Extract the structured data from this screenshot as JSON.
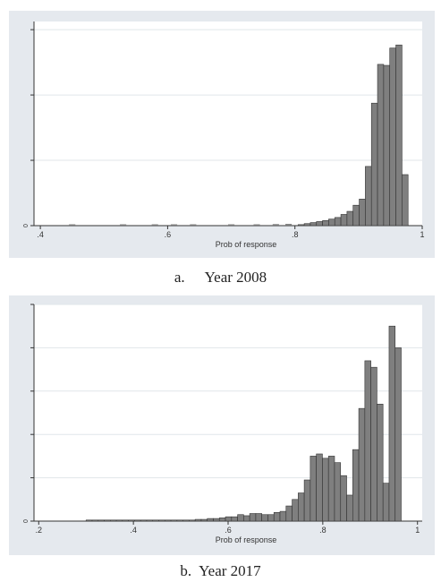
{
  "chart_data": [
    {
      "type": "bar",
      "caption_letter": "a.",
      "caption_text": "Year 2008",
      "xlabel": "Prob of response",
      "xlim": [
        0.39,
        1.0
      ],
      "xticks": [
        ".4",
        ".6",
        ".8",
        "1"
      ],
      "xtick_values": [
        0.4,
        0.6,
        0.8,
        1.0
      ],
      "yticks": [
        "0"
      ],
      "ytick_values": [
        0
      ],
      "ylim": [
        0,
        1.0
      ],
      "gridlines": [
        0,
        0.32,
        0.64,
        0.96
      ],
      "bin_width": 0.0096,
      "bins": [
        {
          "x": 0.805,
          "y": 0.005
        },
        {
          "x": 0.8146,
          "y": 0.01
        },
        {
          "x": 0.8242,
          "y": 0.015
        },
        {
          "x": 0.8338,
          "y": 0.02
        },
        {
          "x": 0.8434,
          "y": 0.025
        },
        {
          "x": 0.853,
          "y": 0.032
        },
        {
          "x": 0.8626,
          "y": 0.04
        },
        {
          "x": 0.8722,
          "y": 0.055
        },
        {
          "x": 0.8818,
          "y": 0.07
        },
        {
          "x": 0.8914,
          "y": 0.1
        },
        {
          "x": 0.901,
          "y": 0.13
        },
        {
          "x": 0.9106,
          "y": 0.29
        },
        {
          "x": 0.9202,
          "y": 0.6
        },
        {
          "x": 0.9298,
          "y": 0.79
        },
        {
          "x": 0.9394,
          "y": 0.785
        },
        {
          "x": 0.949,
          "y": 0.87
        },
        {
          "x": 0.9586,
          "y": 0.885
        },
        {
          "x": 0.9682,
          "y": 0.25
        }
      ],
      "tail_bins": [
        {
          "x": 0.45,
          "y": 0.002
        },
        {
          "x": 0.53,
          "y": 0.002
        },
        {
          "x": 0.58,
          "y": 0.002
        },
        {
          "x": 0.61,
          "y": 0.002
        },
        {
          "x": 0.64,
          "y": 0.002
        },
        {
          "x": 0.7,
          "y": 0.002
        },
        {
          "x": 0.74,
          "y": 0.002
        },
        {
          "x": 0.77,
          "y": 0.003
        },
        {
          "x": 0.79,
          "y": 0.004
        }
      ]
    },
    {
      "type": "bar",
      "caption_letter": "b.",
      "caption_text": "Year 2017",
      "xlabel": "Prob of response",
      "xlim": [
        0.19,
        1.01
      ],
      "xticks": [
        ".2",
        ".4",
        ".6",
        ".8",
        "1"
      ],
      "xtick_values": [
        0.2,
        0.4,
        0.6,
        0.8,
        1.0
      ],
      "yticks": [
        "0"
      ],
      "ytick_values": [
        0
      ],
      "ylim": [
        0,
        1.0
      ],
      "gridlines": [
        0,
        0.2,
        0.4,
        0.6,
        0.8,
        1.0
      ],
      "bin_width": 0.0128,
      "bins": [
        {
          "x": 0.3,
          "y": 0.005
        },
        {
          "x": 0.3128,
          "y": 0.005
        },
        {
          "x": 0.3256,
          "y": 0.005
        },
        {
          "x": 0.3384,
          "y": 0.005
        },
        {
          "x": 0.3512,
          "y": 0.005
        },
        {
          "x": 0.364,
          "y": 0.005
        },
        {
          "x": 0.3768,
          "y": 0.005
        },
        {
          "x": 0.3896,
          "y": 0.005
        },
        {
          "x": 0.4024,
          "y": 0.005
        },
        {
          "x": 0.4152,
          "y": 0.005
        },
        {
          "x": 0.428,
          "y": 0.005
        },
        {
          "x": 0.4408,
          "y": 0.005
        },
        {
          "x": 0.4536,
          "y": 0.005
        },
        {
          "x": 0.4664,
          "y": 0.005
        },
        {
          "x": 0.4792,
          "y": 0.005
        },
        {
          "x": 0.492,
          "y": 0.005
        },
        {
          "x": 0.5048,
          "y": 0.005
        },
        {
          "x": 0.5176,
          "y": 0.005
        },
        {
          "x": 0.5304,
          "y": 0.008
        },
        {
          "x": 0.5432,
          "y": 0.008
        },
        {
          "x": 0.556,
          "y": 0.012
        },
        {
          "x": 0.5688,
          "y": 0.012
        },
        {
          "x": 0.5816,
          "y": 0.015
        },
        {
          "x": 0.5944,
          "y": 0.02
        },
        {
          "x": 0.6072,
          "y": 0.02
        },
        {
          "x": 0.62,
          "y": 0.03
        },
        {
          "x": 0.6328,
          "y": 0.025
        },
        {
          "x": 0.6456,
          "y": 0.035
        },
        {
          "x": 0.6584,
          "y": 0.035
        },
        {
          "x": 0.6712,
          "y": 0.03
        },
        {
          "x": 0.684,
          "y": 0.03
        },
        {
          "x": 0.6968,
          "y": 0.04
        },
        {
          "x": 0.7096,
          "y": 0.045
        },
        {
          "x": 0.7224,
          "y": 0.07
        },
        {
          "x": 0.7352,
          "y": 0.1
        },
        {
          "x": 0.748,
          "y": 0.13
        },
        {
          "x": 0.7608,
          "y": 0.19
        },
        {
          "x": 0.7736,
          "y": 0.3
        },
        {
          "x": 0.7864,
          "y": 0.31
        },
        {
          "x": 0.7992,
          "y": 0.29
        },
        {
          "x": 0.812,
          "y": 0.3
        },
        {
          "x": 0.8248,
          "y": 0.27
        },
        {
          "x": 0.8376,
          "y": 0.21
        },
        {
          "x": 0.8504,
          "y": 0.12
        },
        {
          "x": 0.8632,
          "y": 0.33
        },
        {
          "x": 0.876,
          "y": 0.52
        },
        {
          "x": 0.8888,
          "y": 0.74
        },
        {
          "x": 0.9016,
          "y": 0.71
        },
        {
          "x": 0.9144,
          "y": 0.54
        },
        {
          "x": 0.9272,
          "y": 0.175
        },
        {
          "x": 0.94,
          "y": 0.9
        },
        {
          "x": 0.9528,
          "y": 0.8
        }
      ]
    }
  ]
}
